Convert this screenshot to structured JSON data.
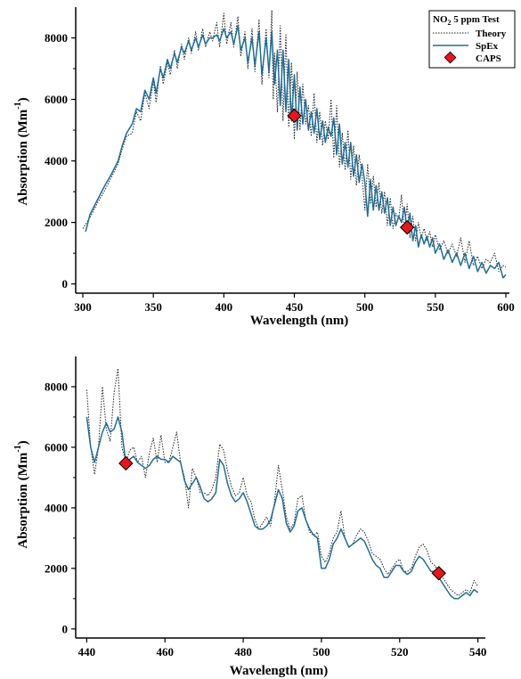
{
  "colors": {
    "theory": "#222222",
    "spex": "#1f6e98",
    "caps": "#e8161b",
    "caps_edge": "#000000"
  },
  "legend": {
    "title": "NO",
    "title_sub": "2",
    "title_rest": " 5 ppm Test",
    "entries": [
      "Theory",
      "SpEx",
      "CAPS"
    ]
  },
  "chart_data": [
    {
      "type": "line",
      "xlabel": "Wavelength (nm)",
      "ylabel_main": "Absorption (Mm",
      "ylabel_sup": "-1",
      "ylabel_end": ")",
      "xlim": [
        300,
        600
      ],
      "ylim": [
        -300,
        9000
      ],
      "xticks": [
        300,
        350,
        400,
        450,
        500,
        550,
        600
      ],
      "yticks": [
        0,
        2000,
        4000,
        6000,
        8000
      ],
      "grid": false,
      "legend_position": "top-right",
      "series": [
        {
          "name": "Theory",
          "style": "dotted",
          "x": [
            300,
            305,
            310,
            315,
            320,
            325,
            328,
            331,
            335,
            338,
            341,
            344,
            347,
            350,
            352,
            355,
            357,
            360,
            362,
            365,
            367,
            370,
            372,
            375,
            377,
            380,
            382,
            385,
            387,
            390,
            392,
            395,
            397,
            400,
            402,
            405,
            407,
            410,
            412,
            415,
            417,
            420,
            422,
            425,
            427,
            430,
            432,
            434,
            435,
            436,
            438,
            440,
            442,
            444,
            446,
            448,
            450,
            452,
            454,
            456,
            458,
            460,
            462,
            464,
            466,
            468,
            470,
            472,
            474,
            476,
            478,
            480,
            482,
            484,
            486,
            488,
            490,
            492,
            494,
            496,
            498,
            500,
            502,
            504,
            506,
            508,
            510,
            512,
            514,
            516,
            518,
            520,
            522,
            524,
            526,
            528,
            530,
            532,
            534,
            536,
            538,
            540,
            542,
            544,
            546,
            548,
            550,
            553,
            556,
            559,
            562,
            565,
            568,
            571,
            574,
            577,
            580,
            583,
            586,
            589,
            592,
            595,
            598,
            600
          ],
          "y": [
            1800,
            2150,
            2600,
            3000,
            3450,
            3900,
            4400,
            4800,
            4900,
            5600,
            5300,
            6200,
            5700,
            6600,
            5900,
            7100,
            6500,
            7200,
            6800,
            7600,
            7000,
            7800,
            7300,
            8000,
            7500,
            8200,
            7600,
            8300,
            7700,
            8200,
            7900,
            8500,
            7700,
            8800,
            7800,
            8500,
            7700,
            8700,
            7400,
            8200,
            7000,
            8300,
            6900,
            8600,
            6500,
            8300,
            6700,
            8900,
            6000,
            7500,
            5600,
            8400,
            5300,
            8100,
            5100,
            7200,
            4700,
            6900,
            5000,
            6500,
            5200,
            5800,
            4800,
            6200,
            4600,
            5600,
            4500,
            5300,
            4700,
            6000,
            4100,
            5800,
            3800,
            4900,
            3700,
            5000,
            3400,
            4500,
            3200,
            4200,
            3500,
            2400,
            3900,
            2600,
            3500,
            2500,
            3300,
            2300,
            3000,
            1900,
            2800,
            1800,
            2300,
            2100,
            2900,
            1700,
            2600,
            1500,
            2200,
            1400,
            2000,
            1500,
            1800,
            1400,
            1700,
            1200,
            1600,
            1100,
            1400,
            1000,
            1300,
            900,
            1500,
            700,
            1400,
            600,
            900,
            500,
            800,
            700,
            1000,
            400,
            600,
            550
          ],
          "values_note": ""
        },
        {
          "name": "SpEx",
          "style": "solid",
          "x": [
            302,
            305,
            310,
            315,
            320,
            325,
            328,
            331,
            335,
            338,
            341,
            344,
            347,
            350,
            352,
            355,
            357,
            360,
            362,
            365,
            367,
            370,
            372,
            375,
            377,
            380,
            382,
            385,
            387,
            390,
            392,
            395,
            397,
            400,
            402,
            405,
            407,
            410,
            412,
            415,
            417,
            420,
            422,
            425,
            427,
            430,
            432,
            434,
            436,
            438,
            440,
            442,
            444,
            446,
            448,
            450,
            452,
            454,
            456,
            458,
            460,
            462,
            464,
            466,
            468,
            470,
            472,
            474,
            476,
            478,
            480,
            482,
            484,
            486,
            488,
            490,
            492,
            494,
            496,
            498,
            500,
            502,
            504,
            506,
            508,
            510,
            512,
            514,
            516,
            518,
            520,
            522,
            524,
            526,
            528,
            530,
            532,
            534,
            536,
            538,
            540,
            542,
            544,
            546,
            548,
            550,
            553,
            556,
            559,
            562,
            565,
            568,
            571,
            574,
            577,
            580,
            583,
            586,
            589,
            592,
            595,
            598,
            600
          ],
          "y": [
            1700,
            2250,
            2700,
            3150,
            3550,
            4000,
            4500,
            4900,
            5200,
            5700,
            5600,
            6300,
            6000,
            6700,
            6200,
            7000,
            6700,
            7300,
            7000,
            7500,
            7200,
            7700,
            7500,
            7900,
            7600,
            8000,
            7700,
            8100,
            7800,
            8000,
            8000,
            8100,
            7900,
            8300,
            8000,
            8200,
            7800,
            8400,
            7600,
            8000,
            7200,
            8000,
            7100,
            8200,
            6800,
            8000,
            6900,
            8200,
            6500,
            7600,
            5800,
            7600,
            5600,
            7300,
            5300,
            6800,
            5000,
            6400,
            5200,
            6000,
            5000,
            5600,
            4900,
            5700,
            4700,
            5300,
            4600,
            5100,
            4800,
            5400,
            4200,
            5200,
            3900,
            4600,
            3800,
            4600,
            3500,
            4200,
            3300,
            3900,
            3300,
            2200,
            3400,
            2400,
            3200,
            2400,
            3000,
            2300,
            2800,
            1900,
            2500,
            1900,
            2200,
            2000,
            2500,
            1700,
            2300,
            1400,
            1900,
            1200,
            1600,
            1300,
            1550,
            1200,
            1500,
            1000,
            1300,
            800,
            1100,
            700,
            1000,
            600,
            1000,
            500,
            900,
            400,
            700,
            350,
            600,
            500,
            700,
            200,
            300
          ],
          "values_note": ""
        },
        {
          "name": "CAPS",
          "style": "marker",
          "x": [
            450,
            530
          ],
          "y": [
            5470,
            1840
          ]
        }
      ]
    },
    {
      "type": "line",
      "xlabel": "Wavelength (nm)",
      "ylabel_main": "Absorption (Mm",
      "ylabel_sup": "-1",
      "ylabel_end": ")",
      "xlim": [
        439,
        541
      ],
      "ylim": [
        -300,
        9000
      ],
      "xticks": [
        440,
        460,
        480,
        500,
        520,
        540
      ],
      "yticks": [
        0,
        2000,
        4000,
        6000,
        8000
      ],
      "grid": false,
      "series": [
        {
          "name": "Theory",
          "style": "dotted",
          "x": [
            440,
            441,
            442,
            443,
            444,
            445,
            446,
            447,
            448,
            449,
            450,
            451,
            452,
            453,
            454,
            455,
            456,
            457,
            458,
            459,
            460,
            461,
            462,
            463,
            464,
            465,
            466,
            467,
            468,
            469,
            470,
            471,
            472,
            473,
            474,
            475,
            476,
            477,
            478,
            479,
            480,
            481,
            482,
            483,
            484,
            485,
            486,
            487,
            488,
            489,
            490,
            491,
            492,
            493,
            494,
            495,
            496,
            497,
            498,
            499,
            500,
            501,
            502,
            503,
            504,
            505,
            506,
            507,
            508,
            509,
            510,
            511,
            512,
            513,
            514,
            515,
            516,
            517,
            518,
            519,
            520,
            521,
            522,
            523,
            524,
            525,
            526,
            527,
            528,
            529,
            530,
            531,
            532,
            533,
            534,
            535,
            536,
            537,
            538,
            539,
            540
          ],
          "y": [
            7900,
            6000,
            5100,
            6000,
            8000,
            6600,
            6200,
            7800,
            8600,
            6000,
            5500,
            5900,
            6000,
            5500,
            5700,
            5000,
            5800,
            6300,
            5500,
            6400,
            5500,
            5500,
            6000,
            6500,
            5500,
            5000,
            4000,
            5300,
            5000,
            4500,
            4500,
            4400,
            4600,
            5000,
            6100,
            5900,
            5200,
            4700,
            4400,
            4500,
            5000,
            4400,
            4200,
            3600,
            3300,
            3500,
            3700,
            3400,
            4200,
            5400,
            4600,
            3700,
            3300,
            3500,
            4300,
            4400,
            3600,
            3200,
            3100,
            3200,
            2400,
            2200,
            2500,
            3000,
            3200,
            3900,
            3000,
            2700,
            2800,
            3100,
            3300,
            3200,
            2900,
            2500,
            2400,
            2300,
            2000,
            1800,
            2000,
            2200,
            2300,
            1900,
            1900,
            2000,
            2400,
            2700,
            2800,
            2600,
            2200,
            2100,
            1900,
            1700,
            1500,
            1300,
            1200,
            1100,
            1200,
            1300,
            1200,
            1600,
            1400
          ],
          "values_note": ""
        },
        {
          "name": "SpEx",
          "style": "solid",
          "x": [
            440,
            441,
            442,
            443,
            444,
            445,
            446,
            447,
            448,
            449,
            450,
            451,
            452,
            453,
            454,
            455,
            456,
            457,
            458,
            459,
            460,
            461,
            462,
            463,
            464,
            465,
            466,
            467,
            468,
            469,
            470,
            471,
            472,
            473,
            474,
            475,
            476,
            477,
            478,
            479,
            480,
            481,
            482,
            483,
            484,
            485,
            486,
            487,
            488,
            489,
            490,
            491,
            492,
            493,
            494,
            495,
            496,
            497,
            498,
            499,
            500,
            501,
            502,
            503,
            504,
            505,
            506,
            507,
            508,
            509,
            510,
            511,
            512,
            513,
            514,
            515,
            516,
            517,
            518,
            519,
            520,
            521,
            522,
            523,
            524,
            525,
            526,
            527,
            528,
            529,
            530,
            531,
            532,
            533,
            534,
            535,
            536,
            537,
            538,
            539,
            540
          ],
          "y": [
            7000,
            6000,
            5500,
            6000,
            6500,
            6800,
            6500,
            6600,
            7000,
            6500,
            5500,
            5600,
            5700,
            5500,
            5400,
            5300,
            5400,
            5600,
            5700,
            5600,
            5600,
            5500,
            5700,
            5600,
            5500,
            4900,
            4600,
            4800,
            5000,
            4700,
            4300,
            4200,
            4300,
            4500,
            5600,
            5400,
            4800,
            4400,
            4200,
            4300,
            4500,
            4200,
            3800,
            3400,
            3300,
            3300,
            3400,
            3600,
            4100,
            4600,
            4300,
            3500,
            3200,
            3400,
            3900,
            4000,
            3600,
            3300,
            3100,
            3000,
            2000,
            2000,
            2300,
            2800,
            3000,
            3300,
            3000,
            2700,
            2800,
            2900,
            3000,
            2900,
            2600,
            2300,
            2100,
            2000,
            1700,
            1700,
            1900,
            2100,
            2100,
            1900,
            1800,
            1900,
            2200,
            2400,
            2300,
            2100,
            1900,
            1900,
            1700,
            1500,
            1300,
            1100,
            1000,
            1000,
            1100,
            1200,
            1100,
            1300,
            1200
          ],
          "values_note": ""
        },
        {
          "name": "CAPS",
          "style": "marker",
          "x": [
            450,
            530
          ],
          "y": [
            5470,
            1840
          ]
        }
      ]
    }
  ]
}
